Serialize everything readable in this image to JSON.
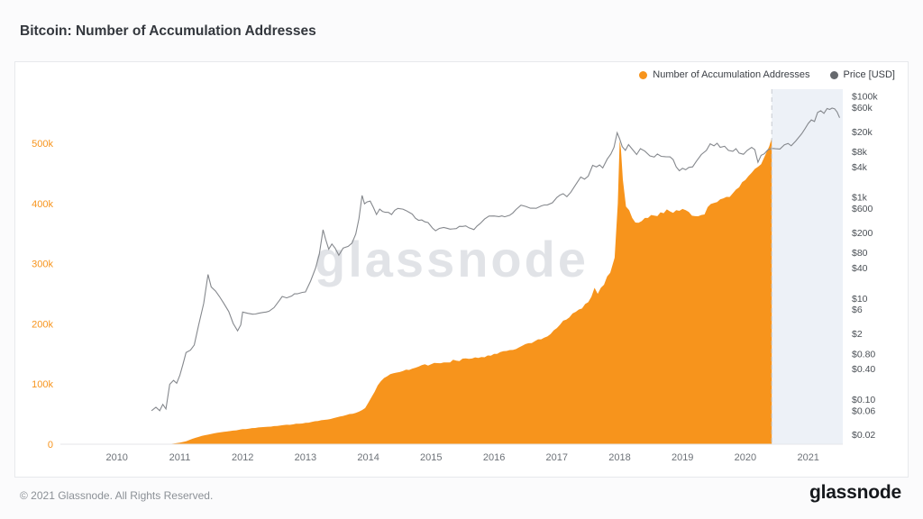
{
  "page": {
    "title": "Bitcoin: Number of Accumulation Addresses",
    "watermark": "glassnode",
    "footer_copyright": "© 2021 Glassnode. All Rights Reserved.",
    "footer_brand": "glassnode"
  },
  "legend": {
    "accumulation_label": "Number of Accumulation Addresses",
    "price_label": "Price [USD]"
  },
  "colors": {
    "accumulation": "#f7941c",
    "price_line": "#85888d",
    "price_dot": "#66696e",
    "highlight_region": "#edf1f7",
    "left_axis_text": "#f7941c",
    "right_axis_text": "#4b5056",
    "x_axis_text": "#6d7278",
    "watermark": "#c4c9d1",
    "dashed_line": "#c7ccd2",
    "baseline": "#e4e6e9"
  },
  "chart_data": {
    "type": "area+line",
    "title": "Bitcoin: Number of Accumulation Addresses",
    "x_domain": [
      2009.1,
      2021.55
    ],
    "x_ticks": [
      2010,
      2011,
      2012,
      2013,
      2014,
      2015,
      2016,
      2017,
      2018,
      2019,
      2020,
      2021
    ],
    "left_axis": {
      "title": "Number of Accumulation Addresses",
      "max": 590000,
      "ticks": [
        0,
        100000,
        200000,
        300000,
        400000,
        500000
      ],
      "labels": [
        "0",
        "100k",
        "200k",
        "300k",
        "400k",
        "500k"
      ]
    },
    "right_axis": {
      "title": "Price [USD]",
      "scale": "log",
      "min": 0.013,
      "max": 140000,
      "ticks": [
        100000,
        60000,
        20000,
        8000,
        4000,
        1000,
        600,
        200,
        80,
        40,
        10,
        6,
        2,
        0.8,
        0.4,
        0.1,
        0.06,
        0.02
      ],
      "labels": [
        "$100k",
        "$60k",
        "$20k",
        "$8k",
        "$4k",
        "$1k",
        "$600",
        "$200",
        "$80",
        "$40",
        "$10",
        "$6",
        "$2",
        "$0.80",
        "$0.40",
        "$0.10",
        "$0.06",
        "$0.02"
      ]
    },
    "annotations": {
      "dashed_line_x": 2020.42,
      "highlight_start": 2020.42
    },
    "series": [
      {
        "name": "Number of Accumulation Addresses",
        "type": "area",
        "axis": "left",
        "points": [
          [
            2010.8,
            300
          ],
          [
            2010.9,
            1000
          ],
          [
            2011.0,
            2500
          ],
          [
            2011.1,
            5000
          ],
          [
            2011.2,
            9000
          ],
          [
            2011.35,
            14000
          ],
          [
            2011.5,
            17000
          ],
          [
            2011.7,
            20500
          ],
          [
            2011.9,
            23000
          ],
          [
            2012.0,
            25000
          ],
          [
            2012.2,
            27000
          ],
          [
            2012.4,
            29000
          ],
          [
            2012.6,
            31000
          ],
          [
            2012.8,
            33000
          ],
          [
            2013.0,
            35500
          ],
          [
            2013.2,
            38500
          ],
          [
            2013.4,
            42000
          ],
          [
            2013.6,
            47000
          ],
          [
            2013.8,
            52000
          ],
          [
            2013.95,
            60000
          ],
          [
            2014.05,
            78000
          ],
          [
            2014.15,
            98000
          ],
          [
            2014.25,
            110000
          ],
          [
            2014.4,
            118000
          ],
          [
            2014.6,
            124000
          ],
          [
            2014.8,
            129000
          ],
          [
            2015.0,
            133000
          ],
          [
            2015.2,
            136000
          ],
          [
            2015.4,
            139000
          ],
          [
            2015.6,
            142000
          ],
          [
            2015.8,
            145000
          ],
          [
            2016.0,
            150000
          ],
          [
            2016.2,
            155000
          ],
          [
            2016.4,
            161000
          ],
          [
            2016.6,
            168000
          ],
          [
            2016.8,
            177000
          ],
          [
            2017.0,
            193000
          ],
          [
            2017.15,
            207000
          ],
          [
            2017.3,
            220000
          ],
          [
            2017.45,
            233000
          ],
          [
            2017.55,
            245000
          ],
          [
            2017.6,
            260000
          ],
          [
            2017.65,
            250000
          ],
          [
            2017.75,
            265000
          ],
          [
            2017.85,
            285000
          ],
          [
            2017.92,
            310000
          ],
          [
            2017.97,
            400000
          ],
          [
            2018.0,
            505000
          ],
          [
            2018.02,
            490000
          ],
          [
            2018.05,
            440000
          ],
          [
            2018.1,
            395000
          ],
          [
            2018.2,
            376000
          ],
          [
            2018.3,
            368000
          ],
          [
            2018.4,
            376000
          ],
          [
            2018.5,
            381000
          ],
          [
            2018.6,
            379000
          ],
          [
            2018.7,
            384000
          ],
          [
            2018.8,
            387000
          ],
          [
            2018.9,
            389000
          ],
          [
            2019.0,
            391000
          ],
          [
            2019.1,
            386000
          ],
          [
            2019.2,
            379000
          ],
          [
            2019.3,
            381000
          ],
          [
            2019.4,
            394000
          ],
          [
            2019.5,
            401000
          ],
          [
            2019.6,
            407000
          ],
          [
            2019.7,
            411000
          ],
          [
            2019.8,
            417000
          ],
          [
            2019.9,
            427000
          ],
          [
            2020.0,
            439000
          ],
          [
            2020.1,
            451000
          ],
          [
            2020.2,
            461000
          ],
          [
            2020.3,
            477000
          ],
          [
            2020.38,
            495000
          ],
          [
            2020.42,
            509000
          ]
        ]
      },
      {
        "name": "Price [USD]",
        "type": "line",
        "axis": "right",
        "points": [
          [
            2010.55,
            0.06
          ],
          [
            2010.62,
            0.07
          ],
          [
            2010.68,
            0.06
          ],
          [
            2010.73,
            0.08
          ],
          [
            2010.78,
            0.065
          ],
          [
            2010.84,
            0.2
          ],
          [
            2010.9,
            0.24
          ],
          [
            2010.95,
            0.21
          ],
          [
            2011.0,
            0.3
          ],
          [
            2011.05,
            0.5
          ],
          [
            2011.1,
            0.85
          ],
          [
            2011.17,
            0.95
          ],
          [
            2011.23,
            1.2
          ],
          [
            2011.3,
            3
          ],
          [
            2011.38,
            8
          ],
          [
            2011.45,
            30
          ],
          [
            2011.5,
            17
          ],
          [
            2011.57,
            14
          ],
          [
            2011.63,
            11
          ],
          [
            2011.7,
            8
          ],
          [
            2011.78,
            5.5
          ],
          [
            2011.85,
            3.2
          ],
          [
            2011.92,
            2.3
          ],
          [
            2011.97,
            3
          ],
          [
            2012.0,
            5.4
          ],
          [
            2012.08,
            5.1
          ],
          [
            2012.16,
            4.9
          ],
          [
            2012.25,
            5.1
          ],
          [
            2012.33,
            5.3
          ],
          [
            2012.42,
            5.6
          ],
          [
            2012.5,
            6.6
          ],
          [
            2012.58,
            9
          ],
          [
            2012.63,
            11
          ],
          [
            2012.7,
            10.3
          ],
          [
            2012.78,
            11.2
          ],
          [
            2012.87,
            12.4
          ],
          [
            2012.95,
            13.2
          ],
          [
            2013.0,
            13.5
          ],
          [
            2013.08,
            22
          ],
          [
            2013.16,
            40
          ],
          [
            2013.22,
            75
          ],
          [
            2013.28,
            230
          ],
          [
            2013.32,
            150
          ],
          [
            2013.37,
            95
          ],
          [
            2013.42,
            120
          ],
          [
            2013.47,
            100
          ],
          [
            2013.53,
            72
          ],
          [
            2013.6,
            100
          ],
          [
            2013.68,
            108
          ],
          [
            2013.74,
            125
          ],
          [
            2013.8,
            190
          ],
          [
            2013.85,
            380
          ],
          [
            2013.9,
            1100
          ],
          [
            2013.94,
            750
          ],
          [
            2013.98,
            820
          ],
          [
            2014.03,
            850
          ],
          [
            2014.08,
            640
          ],
          [
            2014.13,
            460
          ],
          [
            2014.18,
            590
          ],
          [
            2014.27,
            510
          ],
          [
            2014.37,
            460
          ],
          [
            2014.47,
            610
          ],
          [
            2014.55,
            590
          ],
          [
            2014.65,
            510
          ],
          [
            2014.75,
            390
          ],
          [
            2014.85,
            360
          ],
          [
            2014.95,
            320
          ],
          [
            2015.02,
            250
          ],
          [
            2015.07,
            220
          ],
          [
            2015.13,
            245
          ],
          [
            2015.2,
            255
          ],
          [
            2015.3,
            237
          ],
          [
            2015.4,
            243
          ],
          [
            2015.5,
            268
          ],
          [
            2015.6,
            252
          ],
          [
            2015.68,
            232
          ],
          [
            2015.78,
            305
          ],
          [
            2015.85,
            375
          ],
          [
            2015.92,
            430
          ],
          [
            2016.0,
            432
          ],
          [
            2016.08,
            420
          ],
          [
            2016.17,
            416
          ],
          [
            2016.25,
            445
          ],
          [
            2016.35,
            580
          ],
          [
            2016.43,
            705
          ],
          [
            2016.5,
            670
          ],
          [
            2016.58,
            615
          ],
          [
            2016.67,
            612
          ],
          [
            2016.75,
            680
          ],
          [
            2016.85,
            715
          ],
          [
            2016.93,
            790
          ],
          [
            2017.0,
            1000
          ],
          [
            2017.05,
            1120
          ],
          [
            2017.1,
            1190
          ],
          [
            2017.16,
            1040
          ],
          [
            2017.22,
            1260
          ],
          [
            2017.3,
            1800
          ],
          [
            2017.38,
            2550
          ],
          [
            2017.44,
            2320
          ],
          [
            2017.5,
            2650
          ],
          [
            2017.57,
            4350
          ],
          [
            2017.63,
            4050
          ],
          [
            2017.68,
            4420
          ],
          [
            2017.73,
            3850
          ],
          [
            2017.8,
            5750
          ],
          [
            2017.86,
            7250
          ],
          [
            2017.91,
            9900
          ],
          [
            2017.96,
            19200
          ],
          [
            2018.0,
            14500
          ],
          [
            2018.04,
            10200
          ],
          [
            2018.09,
            8600
          ],
          [
            2018.14,
            11200
          ],
          [
            2018.2,
            9100
          ],
          [
            2018.27,
            7100
          ],
          [
            2018.33,
            9300
          ],
          [
            2018.4,
            8300
          ],
          [
            2018.48,
            6700
          ],
          [
            2018.55,
            6350
          ],
          [
            2018.6,
            7300
          ],
          [
            2018.66,
            6550
          ],
          [
            2018.73,
            6450
          ],
          [
            2018.8,
            6400
          ],
          [
            2018.85,
            5650
          ],
          [
            2018.9,
            4050
          ],
          [
            2018.95,
            3400
          ],
          [
            2019.0,
            3800
          ],
          [
            2019.05,
            3550
          ],
          [
            2019.1,
            3950
          ],
          [
            2019.16,
            4050
          ],
          [
            2019.22,
            5250
          ],
          [
            2019.3,
            7100
          ],
          [
            2019.38,
            8600
          ],
          [
            2019.44,
            11600
          ],
          [
            2019.5,
            10600
          ],
          [
            2019.55,
            11900
          ],
          [
            2019.6,
            9900
          ],
          [
            2019.67,
            10400
          ],
          [
            2019.73,
            8600
          ],
          [
            2019.8,
            8250
          ],
          [
            2019.85,
            9250
          ],
          [
            2019.9,
            7600
          ],
          [
            2019.97,
            7200
          ],
          [
            2020.03,
            8600
          ],
          [
            2020.1,
            9900
          ],
          [
            2020.15,
            8900
          ],
          [
            2020.2,
            5000
          ],
          [
            2020.25,
            6850
          ],
          [
            2020.3,
            7350
          ],
          [
            2020.36,
            8850
          ],
          [
            2020.42,
            9400
          ],
          [
            2020.48,
            9250
          ],
          [
            2020.55,
            9150
          ],
          [
            2020.62,
            11100
          ],
          [
            2020.68,
            11800
          ],
          [
            2020.73,
            10600
          ],
          [
            2020.8,
            13100
          ],
          [
            2020.85,
            15600
          ],
          [
            2020.9,
            18600
          ],
          [
            2020.95,
            23200
          ],
          [
            2021.0,
            29400
          ],
          [
            2021.05,
            34500
          ],
          [
            2021.1,
            32200
          ],
          [
            2021.15,
            48500
          ],
          [
            2021.2,
            52500
          ],
          [
            2021.25,
            46500
          ],
          [
            2021.3,
            58200
          ],
          [
            2021.34,
            55500
          ],
          [
            2021.38,
            59000
          ],
          [
            2021.42,
            57500
          ],
          [
            2021.46,
            49500
          ],
          [
            2021.5,
            38000
          ]
        ]
      }
    ]
  }
}
